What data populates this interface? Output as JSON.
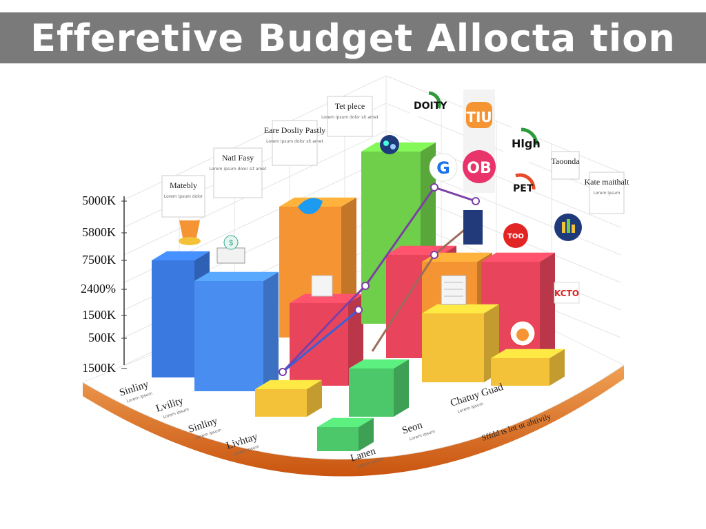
{
  "title": "Efferetive Budget Allocta tion",
  "chart_data": {
    "type": "bar",
    "title": "Efferetive Budget Allocta tion",
    "y_tick_labels": [
      "5000K",
      "5800K",
      "7500K",
      "2400%",
      "1500K",
      "500K",
      "1500K"
    ],
    "category_labels": [
      {
        "text": "Sinliny",
        "sub": "Lorem ipsum"
      },
      {
        "text": "Lvility",
        "sub": "Lorem ipsum"
      },
      {
        "text": "Sinliny",
        "sub": "Lorem ipsum"
      },
      {
        "text": "Livhtay",
        "sub": "Lorem ipsum"
      },
      {
        "text": "Lanen",
        "sub": "Lorem ipsum"
      },
      {
        "text": "Seon",
        "sub": "Lorem ipsum"
      },
      {
        "text": "Chatuy Guad",
        "sub": "Lorem ipsum"
      }
    ],
    "floor_note": "Sffdd ts lot ut ahtivily",
    "callouts": [
      {
        "title": "Matebly",
        "text": "Lorem ipsum dolor"
      },
      {
        "title": "Natl Fasy",
        "text": "Lorem ipsum dolor sit amet"
      },
      {
        "title": "Eare Dosliy Pastly",
        "text": "Lorem ipsum dolor sit amet"
      },
      {
        "title": "Tet plece",
        "text": "Lorem ipsum dolor sit amet"
      },
      {
        "title": "Kate maithalt",
        "text": "Lorem ipsum"
      },
      {
        "title": "Taoonda",
        "text": ""
      }
    ],
    "badges": [
      "DOITY",
      "TIU",
      "OB",
      "Hlgh",
      "PET",
      "TOO",
      "KCTO"
    ],
    "bars": [
      {
        "color": "#3a79e0",
        "h": 170
      },
      {
        "color": "#4a8df0",
        "h": 160
      },
      {
        "color": "#f59432",
        "h": 190
      },
      {
        "color": "#e8455c",
        "h": 120
      },
      {
        "color": "#6fcf4a",
        "h": 250
      },
      {
        "color": "#e8455c",
        "h": 150
      },
      {
        "color": "#f59432",
        "h": 90
      },
      {
        "color": "#e8455c",
        "h": 140
      },
      {
        "color": "#f4c239",
        "h": 100
      },
      {
        "color": "#f4c239",
        "h": 40
      },
      {
        "color": "#4cc86a",
        "h": 70
      },
      {
        "color": "#f4c239",
        "h": 40
      },
      {
        "color": "#4cc86a",
        "h": 35
      }
    ],
    "colors": {
      "blue": "#3a79e0",
      "orange": "#f59432",
      "red": "#e8455c",
      "green": "#6fcf4a",
      "yellow": "#f4c239",
      "teal": "#4cc86a",
      "platform": "#d9631a",
      "line1": "#7b3fa6",
      "line2": "#3b5fd6",
      "line3": "#9c6b5a"
    }
  }
}
